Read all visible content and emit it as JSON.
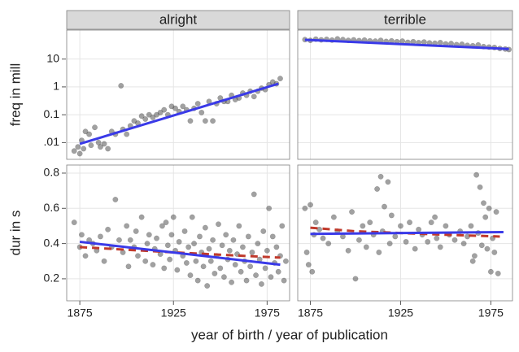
{
  "chart_data": {
    "type": "scatter",
    "xlabel": "year of birth / year of publication",
    "xlim": [
      1868,
      1987
    ],
    "xticks": [
      1875,
      1925,
      1975
    ],
    "columns": [
      "alright",
      "terrible"
    ],
    "rows": [
      {
        "ylabel": "freq in mill",
        "log": true,
        "ylim": [
          0.0025,
          110
        ],
        "yticks": [
          {
            "value": 0.01,
            "label": ".01"
          },
          0.1,
          1,
          10
        ],
        "panels": [
          {
            "points": {
              "color": "#444444",
              "x": [
                1872,
                1874,
                1875,
                1876,
                1877,
                1878,
                1880,
                1881,
                1883,
                1885,
                1886,
                1888,
                1890,
                1892,
                1894,
                1897,
                1898,
                1900,
                1902,
                1904,
                1906,
                1908,
                1910,
                1912,
                1914,
                1916,
                1918,
                1920,
                1922,
                1924,
                1926,
                1928,
                1930,
                1932,
                1934,
                1936,
                1938,
                1940,
                1942,
                1944,
                1946,
                1948,
                1950,
                1952,
                1954,
                1956,
                1958,
                1960,
                1962,
                1964,
                1966,
                1968,
                1970,
                1972,
                1974,
                1976,
                1978,
                1980,
                1982
              ],
              "values": [
                0.005,
                0.007,
                0.004,
                0.012,
                0.006,
                0.025,
                0.02,
                0.008,
                0.035,
                0.01,
                0.007,
                0.009,
                0.006,
                0.025,
                0.02,
                1.1,
                0.03,
                0.02,
                0.04,
                0.06,
                0.05,
                0.09,
                0.07,
                0.1,
                0.08,
                0.1,
                0.12,
                0.15,
                0.1,
                0.2,
                0.17,
                0.13,
                0.2,
                0.15,
                0.06,
                0.17,
                0.25,
                0.12,
                0.06,
                0.3,
                0.06,
                0.25,
                0.4,
                0.3,
                0.3,
                0.5,
                0.35,
                0.4,
                0.6,
                0.5,
                0.7,
                0.45,
                0.7,
                0.9,
                0.8,
                1.2,
                1.5,
                1.3,
                2.0
              ]
            },
            "fits": [
              {
                "color": "#3a3ae8",
                "dash": false,
                "x": [
                  1875,
                  1981
                ],
                "values": [
                  0.009,
                  1.3
                ]
              }
            ]
          },
          {
            "points": {
              "color": "#444444",
              "x": [
                1872,
                1875,
                1878,
                1881,
                1884,
                1887,
                1890,
                1893,
                1896,
                1899,
                1902,
                1905,
                1908,
                1911,
                1914,
                1917,
                1920,
                1923,
                1926,
                1929,
                1932,
                1935,
                1938,
                1941,
                1944,
                1947,
                1950,
                1953,
                1956,
                1959,
                1962,
                1965,
                1968,
                1971,
                1974,
                1977,
                1980,
                1983,
                1985
              ],
              "values": [
                50,
                47,
                52,
                49,
                51,
                48,
                53,
                50,
                47,
                49,
                46,
                48,
                45,
                44,
                47,
                43,
                45,
                42,
                44,
                40,
                42,
                39,
                41,
                38,
                37,
                39,
                35,
                36,
                33,
                34,
                31,
                30,
                32,
                28,
                27,
                26,
                24,
                23,
                22
              ]
            },
            "fits": [
              {
                "color": "#3a3ae8",
                "dash": false,
                "x": [
                  1872,
                  1985
                ],
                "values": [
                  49,
                  23
                ]
              }
            ]
          }
        ]
      },
      {
        "ylabel": "dur in s",
        "log": false,
        "ylim": [
          0.075,
          0.846
        ],
        "yticks": [
          0.2,
          0.4,
          0.6,
          0.8
        ],
        "panels": [
          {
            "points": {
              "color": "#444444",
              "x": [
                1872,
                1875,
                1876,
                1878,
                1880,
                1882,
                1884,
                1886,
                1888,
                1890,
                1892,
                1894,
                1896,
                1898,
                1900,
                1901,
                1902,
                1904,
                1905,
                1906,
                1908,
                1910,
                1911,
                1912,
                1914,
                1915,
                1916,
                1918,
                1919,
                1920,
                1921,
                1922,
                1923,
                1924,
                1925,
                1926,
                1927,
                1928,
                1930,
                1931,
                1932,
                1933,
                1934,
                1935,
                1936,
                1937,
                1938,
                1939,
                1940,
                1941,
                1942,
                1943,
                1944,
                1945,
                1946,
                1947,
                1948,
                1949,
                1950,
                1951,
                1952,
                1953,
                1954,
                1955,
                1956,
                1957,
                1958,
                1959,
                1960,
                1961,
                1962,
                1963,
                1964,
                1965,
                1966,
                1967,
                1968,
                1969,
                1970,
                1971,
                1972,
                1973,
                1974,
                1975,
                1976,
                1977,
                1978,
                1979,
                1980,
                1981,
                1982,
                1983,
                1984,
                1985
              ],
              "values": [
                0.52,
                0.38,
                0.45,
                0.33,
                0.42,
                0.4,
                0.36,
                0.44,
                0.3,
                0.48,
                0.38,
                0.65,
                0.42,
                0.35,
                0.5,
                0.27,
                0.42,
                0.38,
                0.47,
                0.33,
                0.55,
                0.3,
                0.4,
                0.45,
                0.28,
                0.37,
                0.43,
                0.34,
                0.5,
                0.26,
                0.52,
                0.39,
                0.31,
                0.45,
                0.55,
                0.36,
                0.25,
                0.41,
                0.33,
                0.47,
                0.29,
                0.38,
                0.22,
                0.55,
                0.4,
                0.3,
                0.19,
                0.44,
                0.35,
                0.27,
                0.49,
                0.16,
                0.37,
                0.3,
                0.42,
                0.23,
                0.33,
                0.51,
                0.26,
                0.39,
                0.21,
                0.45,
                0.31,
                0.36,
                0.18,
                0.42,
                0.28,
                0.34,
                0.5,
                0.24,
                0.38,
                0.3,
                0.19,
                0.44,
                0.27,
                0.35,
                0.68,
                0.22,
                0.4,
                0.31,
                0.17,
                0.47,
                0.26,
                0.36,
                0.6,
                0.21,
                0.44,
                0.29,
                0.38,
                0.24,
                0.33,
                0.5,
                0.19,
                0.3
              ]
            },
            "fits": [
              {
                "color": "#c0392b",
                "dash": true,
                "x": [
                  1875,
                  1925,
                  1982
                ],
                "values": [
                  0.38,
                  0.35,
                  0.32
                ]
              },
              {
                "color": "#3a3ae8",
                "dash": false,
                "x": [
                  1875,
                  1982
                ],
                "values": [
                  0.41,
                  0.28
                ]
              }
            ]
          },
          {
            "points": {
              "color": "#444444",
              "x": [
                1872,
                1873,
                1874,
                1875,
                1876,
                1877,
                1878,
                1880,
                1882,
                1885,
                1888,
                1890,
                1893,
                1896,
                1898,
                1900,
                1902,
                1904,
                1906,
                1908,
                1910,
                1912,
                1913,
                1914,
                1915,
                1916,
                1918,
                1919,
                1920,
                1922,
                1925,
                1928,
                1930,
                1933,
                1935,
                1937,
                1940,
                1942,
                1944,
                1945,
                1947,
                1950,
                1952,
                1955,
                1958,
                1960,
                1962,
                1964,
                1965,
                1966,
                1967,
                1968,
                1969,
                1970,
                1971,
                1972,
                1973,
                1974,
                1975,
                1976,
                1977,
                1978,
                1979
              ],
              "values": [
                0.6,
                0.35,
                0.28,
                0.62,
                0.24,
                0.45,
                0.52,
                0.48,
                0.43,
                0.4,
                0.55,
                0.47,
                0.44,
                0.36,
                0.58,
                0.2,
                0.42,
                0.5,
                0.38,
                0.52,
                0.45,
                0.71,
                0.35,
                0.78,
                0.47,
                0.61,
                0.75,
                0.4,
                0.56,
                0.44,
                0.5,
                0.41,
                0.52,
                0.37,
                0.48,
                0.45,
                0.41,
                0.52,
                0.55,
                0.43,
                0.38,
                0.5,
                0.45,
                0.42,
                0.47,
                0.4,
                0.44,
                0.5,
                0.3,
                0.33,
                0.79,
                0.46,
                0.72,
                0.39,
                0.63,
                0.55,
                0.37,
                0.6,
                0.24,
                0.43,
                0.35,
                0.58,
                0.23
              ]
            },
            "fits": [
              {
                "color": "#c0392b",
                "dash": true,
                "x": [
                  1875,
                  1900,
                  1925,
                  1950,
                  1980
                ],
                "values": [
                  0.49,
                  0.47,
                  0.46,
                  0.45,
                  0.44
                ]
              },
              {
                "color": "#3a3ae8",
                "dash": false,
                "x": [
                  1875,
                  1982
                ],
                "values": [
                  0.455,
                  0.465
                ]
              }
            ]
          }
        ]
      }
    ]
  }
}
